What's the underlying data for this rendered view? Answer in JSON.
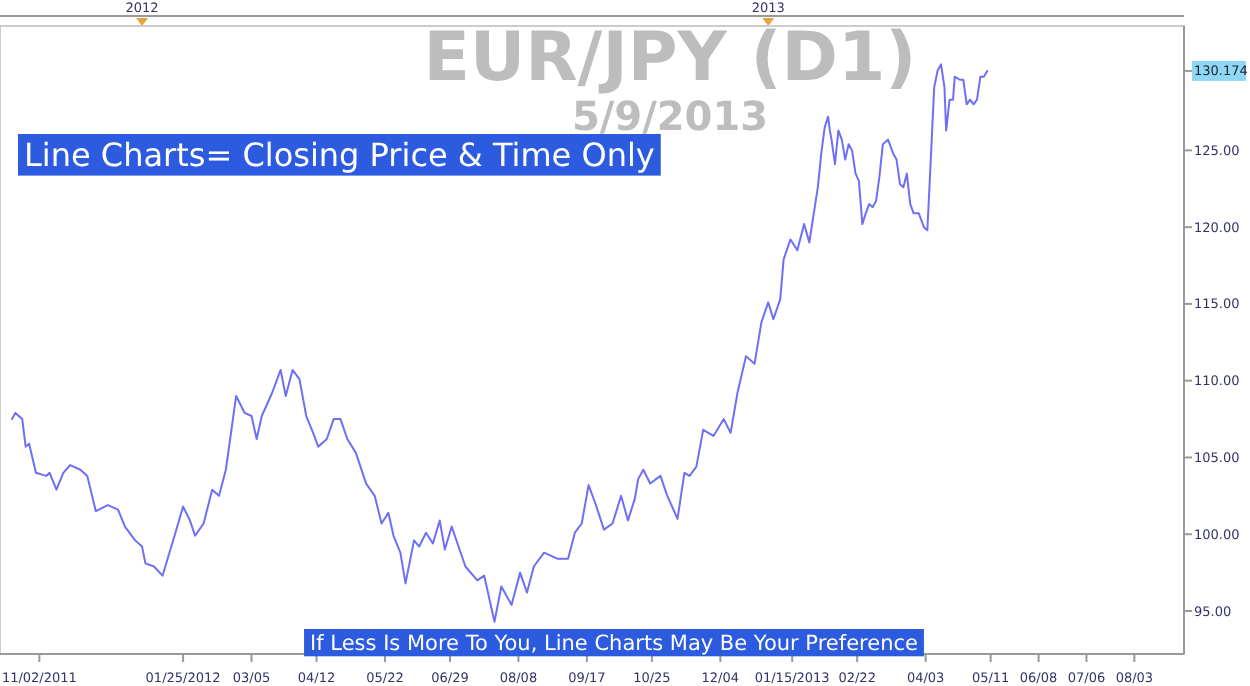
{
  "chart_data": {
    "type": "line",
    "title": "EUR/JPY (D1)",
    "subtitle": "5/9/2013",
    "annotations": [
      "Line Charts= Closing Price & Time Only",
      "If Less Is More To You, Line Charts May Be Your Preference"
    ],
    "xlim": [
      "2011-10-10",
      "2013-09-01"
    ],
    "xticks": [
      {
        "value": "2011-11-02",
        "label": "11/02/2011"
      },
      {
        "value": "2012-01-25",
        "label": "01/25/2012"
      },
      {
        "value": "2012-03-05",
        "label": "03/05"
      },
      {
        "value": "2012-04-12",
        "label": "04/12"
      },
      {
        "value": "2012-05-22",
        "label": "05/22"
      },
      {
        "value": "2012-06-29",
        "label": "06/29"
      },
      {
        "value": "2012-08-08",
        "label": "08/08"
      },
      {
        "value": "2012-09-17",
        "label": "09/17"
      },
      {
        "value": "2012-10-25",
        "label": "10/25"
      },
      {
        "value": "2012-12-04",
        "label": "12/04"
      },
      {
        "value": "2013-01-15",
        "label": "01/15/2013"
      },
      {
        "value": "2013-02-22",
        "label": "02/22"
      },
      {
        "value": "2013-04-03",
        "label": "04/03"
      },
      {
        "value": "2013-05-11",
        "label": "05/11"
      },
      {
        "value": "2013-06-08",
        "label": "06/08"
      },
      {
        "value": "2013-07-06",
        "label": "07/06"
      },
      {
        "value": "2013-08-03",
        "label": "08/03"
      }
    ],
    "x2lim": [
      "2011-10-10",
      "2013-09-01"
    ],
    "x2ticks": [
      {
        "value": "2012-01-01",
        "label": "2012"
      },
      {
        "value": "2013-01-01",
        "label": "2013"
      }
    ],
    "ylim": [
      92.2,
      133.1
    ],
    "yticks": [
      {
        "value": 95,
        "label": "95.00"
      },
      {
        "value": 100,
        "label": "100.00"
      },
      {
        "value": 105,
        "label": "105.00"
      },
      {
        "value": 110,
        "label": "110.00"
      },
      {
        "value": 115,
        "label": "115.00"
      },
      {
        "value": 120,
        "label": "120.00"
      },
      {
        "value": 125,
        "label": "125.00"
      },
      {
        "value": 130.174,
        "label": "130.174"
      }
    ],
    "grid": false,
    "marker": "none",
    "line_style": "solid",
    "series": [
      {
        "color": "#6f6ff5",
        "x": [
          "2011-10-17",
          "2011-10-19",
          "2011-10-23",
          "2011-10-25",
          "2011-10-27",
          "2011-10-31",
          "2011-11-06",
          "2011-11-08",
          "2011-11-12",
          "2011-11-16",
          "2011-11-20",
          "2011-11-26",
          "2011-11-30",
          "2011-12-05",
          "2011-12-12",
          "2011-12-18",
          "2011-12-22",
          "2011-12-28",
          "2012-01-01",
          "2012-01-03",
          "2012-01-08",
          "2012-01-13",
          "2012-01-20",
          "2012-01-25",
          "2012-01-29",
          "2012-02-01",
          "2012-02-06",
          "2012-02-11",
          "2012-02-15",
          "2012-02-19",
          "2012-02-25",
          "2012-03-01",
          "2012-03-05",
          "2012-03-08",
          "2012-03-11",
          "2012-03-17",
          "2012-03-22",
          "2012-03-25",
          "2012-03-29",
          "2012-04-02",
          "2012-04-06",
          "2012-04-10",
          "2012-04-13",
          "2012-04-18",
          "2012-04-22",
          "2012-04-26",
          "2012-04-30",
          "2012-05-05",
          "2012-05-11",
          "2012-05-16",
          "2012-05-20",
          "2012-05-24",
          "2012-05-27",
          "2012-05-31",
          "2012-06-03",
          "2012-06-08",
          "2012-06-11",
          "2012-06-15",
          "2012-06-19",
          "2012-06-23",
          "2012-06-26",
          "2012-06-30",
          "2012-07-04",
          "2012-07-08",
          "2012-07-15",
          "2012-07-19",
          "2012-07-22",
          "2012-07-25",
          "2012-07-29",
          "2012-08-01",
          "2012-08-04",
          "2012-08-09",
          "2012-08-13",
          "2012-08-17",
          "2012-08-23",
          "2012-08-31",
          "2012-09-06",
          "2012-09-10",
          "2012-09-14",
          "2012-09-18",
          "2012-09-22",
          "2012-09-27",
          "2012-10-02",
          "2012-10-07",
          "2012-10-11",
          "2012-10-15",
          "2012-10-17",
          "2012-10-20",
          "2012-10-24",
          "2012-10-30",
          "2012-11-03",
          "2012-11-09",
          "2012-11-13",
          "2012-11-16",
          "2012-11-20",
          "2012-11-24",
          "2012-11-30",
          "2012-12-06",
          "2012-12-10",
          "2012-12-14",
          "2012-12-19",
          "2012-12-24",
          "2012-12-28",
          "2013-01-01",
          "2013-01-04",
          "2013-01-08",
          "2013-01-10",
          "2013-01-14",
          "2013-01-18",
          "2013-01-22",
          "2013-01-25",
          "2013-01-30",
          "2013-02-01",
          "2013-02-03",
          "2013-02-05",
          "2013-02-06",
          "2013-02-07",
          "2013-02-09",
          "2013-02-11",
          "2013-02-13",
          "2013-02-15",
          "2013-02-17",
          "2013-02-19",
          "2013-02-21",
          "2013-02-23",
          "2013-02-25",
          "2013-02-27",
          "2013-03-01",
          "2013-03-03",
          "2013-03-05",
          "2013-03-07",
          "2013-03-09",
          "2013-03-12",
          "2013-03-15",
          "2013-03-17",
          "2013-03-19",
          "2013-03-21",
          "2013-03-23",
          "2013-03-25",
          "2013-03-27",
          "2013-03-30",
          "2013-04-02",
          "2013-04-04",
          "2013-04-06",
          "2013-04-08",
          "2013-04-10",
          "2013-04-12",
          "2013-04-14",
          "2013-04-15",
          "2013-04-17",
          "2013-04-19",
          "2013-04-20",
          "2013-04-23",
          "2013-04-25",
          "2013-04-27",
          "2013-04-29",
          "2013-05-01",
          "2013-05-03",
          "2013-05-05",
          "2013-05-07",
          "2013-05-09"
        ],
        "values": [
          107.5,
          107.9,
          107.5,
          105.7,
          105.9,
          104.0,
          103.8,
          104.0,
          102.9,
          104.0,
          104.5,
          104.2,
          103.8,
          101.5,
          101.9,
          101.6,
          100.5,
          99.6,
          99.2,
          98.1,
          97.9,
          97.3,
          99.9,
          101.8,
          100.9,
          99.9,
          100.7,
          102.9,
          102.5,
          104.2,
          109.0,
          107.9,
          107.7,
          106.2,
          107.7,
          109.2,
          110.7,
          109.0,
          110.7,
          110.1,
          107.7,
          106.6,
          105.7,
          106.2,
          107.5,
          107.5,
          106.2,
          105.3,
          103.3,
          102.5,
          100.7,
          101.4,
          99.9,
          98.8,
          96.8,
          99.6,
          99.2,
          100.1,
          99.4,
          100.9,
          99.0,
          100.5,
          99.2,
          97.9,
          97.0,
          97.3,
          95.8,
          94.3,
          96.6,
          96.0,
          95.4,
          97.5,
          96.2,
          97.9,
          98.8,
          98.4,
          98.4,
          100.1,
          100.7,
          103.2,
          102.0,
          100.3,
          100.7,
          102.5,
          100.9,
          102.3,
          103.6,
          104.2,
          103.3,
          103.8,
          102.5,
          101.0,
          104.0,
          103.8,
          104.4,
          106.8,
          106.4,
          107.5,
          106.6,
          109.2,
          111.6,
          111.1,
          113.8,
          115.1,
          114.0,
          115.3,
          117.9,
          119.2,
          118.5,
          120.2,
          119.0,
          122.6,
          124.8,
          126.5,
          127.2,
          126.3,
          125.7,
          124.1,
          126.3,
          125.7,
          124.4,
          125.4,
          125.0,
          123.5,
          123.0,
          120.2,
          120.9,
          121.5,
          121.3,
          121.7,
          123.3,
          125.4,
          125.7,
          124.8,
          124.4,
          122.8,
          122.6,
          123.5,
          121.5,
          120.9,
          120.9,
          120.0,
          119.8,
          124.4,
          129.1,
          130.2,
          130.6,
          129.1,
          126.3,
          128.3,
          128.3,
          129.8,
          129.6,
          129.6,
          128.0,
          128.3,
          128.0,
          128.3,
          129.8,
          129.8,
          130.174
        ]
      }
    ]
  }
}
